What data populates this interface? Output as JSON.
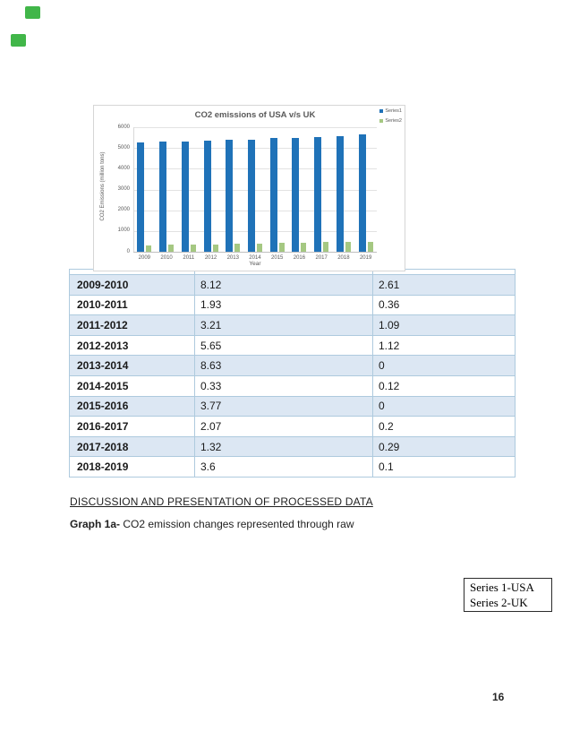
{
  "page": {
    "number": "16"
  },
  "markers": {
    "color": "#41b649"
  },
  "chart": {
    "title": "CO2 emissions of USA v/s UK",
    "y_axis_title": "CO2 Emissions (million tons)",
    "x_axis_title": "Year",
    "legend": [
      {
        "label": "Series1",
        "color": "#1f72b8"
      },
      {
        "label": "Series2",
        "color": "#a5c882"
      }
    ]
  },
  "chart_data": {
    "type": "bar",
    "title": "CO2 emissions of USA v/s UK",
    "categories": [
      "2009",
      "2010",
      "2011",
      "2012",
      "2013",
      "2014",
      "2015",
      "2016",
      "2017",
      "2018",
      "2019"
    ],
    "series": [
      {
        "name": "Series1",
        "color": "#1f72b8",
        "values": [
          5250,
          5290,
          5290,
          5360,
          5400,
          5400,
          5480,
          5500,
          5540,
          5580,
          5650
        ]
      },
      {
        "name": "Series2",
        "color": "#a5c882",
        "values": [
          300,
          330,
          360,
          360,
          400,
          400,
          450,
          450,
          470,
          470,
          495
        ]
      }
    ],
    "xlabel": "Year",
    "ylabel": "CO2 Emissions (million tons)",
    "ylim": [
      0,
      6000
    ],
    "yticks": [
      0,
      1000,
      2000,
      3000,
      4000,
      5000,
      6000
    ],
    "grid": true,
    "legend_position": "top-right"
  },
  "table": {
    "rows": [
      {
        "period": "2009-2010",
        "usa": "8.12",
        "uk": "2.61"
      },
      {
        "period": "2010-2011",
        "usa": "1.93",
        "uk": "0.36"
      },
      {
        "period": "2011-2012",
        "usa": "3.21",
        "uk": "1.09"
      },
      {
        "period": "2012-2013",
        "usa": "5.65",
        "uk": "1.12"
      },
      {
        "period": "2013-2014",
        "usa": "8.63",
        "uk": "0"
      },
      {
        "period": "2014-2015",
        "usa": "0.33",
        "uk": "0.12"
      },
      {
        "period": "2015-2016",
        "usa": "3.77",
        "uk": "0"
      },
      {
        "period": "2016-2017",
        "usa": "2.07",
        "uk": "0.2"
      },
      {
        "period": "2017-2018",
        "usa": "1.32",
        "uk": "0.29"
      },
      {
        "period": "2018-2019",
        "usa": "3.6",
        "uk": "0.1"
      }
    ]
  },
  "text": {
    "heading": "DISCUSSION AND PRESENTATION OF PROCESSED DATA",
    "caption_bold": "Graph 1a-",
    "caption_rest": " CO2 emission changes represented through raw"
  },
  "textbox": {
    "line1": "Series 1-USA",
    "line2": "Series 2-UK"
  }
}
